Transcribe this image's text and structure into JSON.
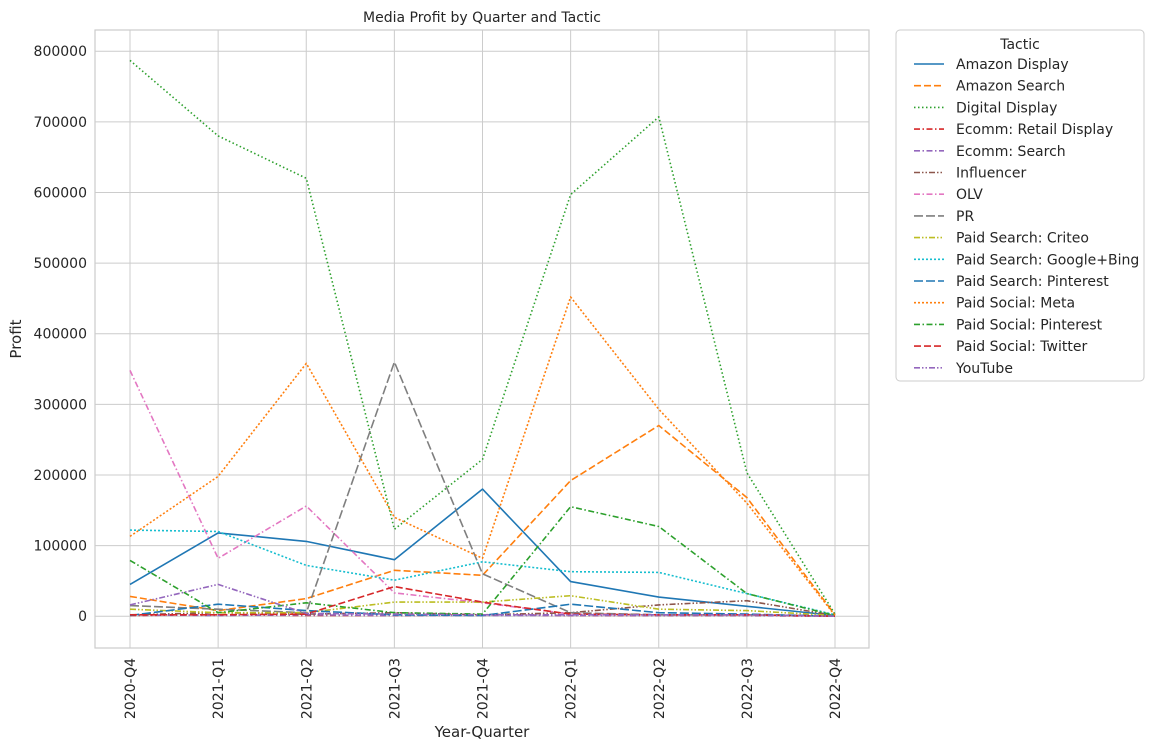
{
  "chart_data": {
    "type": "line",
    "title": "Media Profit by Quarter and Tactic",
    "xlabel": "Year-Quarter",
    "ylabel": "Profit",
    "categories": [
      "2020-Q4",
      "2021-Q1",
      "2021-Q2",
      "2021-Q3",
      "2021-Q4",
      "2022-Q1",
      "2022-Q2",
      "2022-Q3",
      "2022-Q4"
    ],
    "yticks": [
      0,
      100000,
      200000,
      300000,
      400000,
      500000,
      600000,
      700000,
      800000
    ],
    "ytick_labels": [
      "0",
      "100000",
      "200000",
      "300000",
      "400000",
      "500000",
      "600000",
      "700000",
      "800000"
    ],
    "ylim": [
      -45000,
      830000
    ],
    "grid": true,
    "legend": {
      "title": "Tactic",
      "position": "outside-right"
    },
    "series": [
      {
        "name": "Amazon Display",
        "color": "#1f77b4",
        "dash": "solid",
        "values": [
          45000,
          118000,
          106000,
          80000,
          180000,
          49000,
          27000,
          14000,
          1000
        ]
      },
      {
        "name": "Amazon Search",
        "color": "#ff7f0e",
        "dash": "dashed",
        "values": [
          28000,
          8000,
          25000,
          65000,
          58000,
          192000,
          270000,
          168000,
          2000
        ]
      },
      {
        "name": "Digital Display",
        "color": "#2ca02c",
        "dash": "dotted",
        "values": [
          787000,
          680000,
          620000,
          123000,
          222000,
          597000,
          707000,
          203000,
          3000
        ]
      },
      {
        "name": "Ecomm: Retail Display",
        "color": "#d62728",
        "dash": "dashdot",
        "values": [
          1000,
          2000,
          1000,
          1000,
          2000,
          1000,
          1000,
          1000,
          0
        ]
      },
      {
        "name": "Ecomm: Search",
        "color": "#9467bd",
        "dash": "dashdot",
        "values": [
          2000,
          1000,
          2000,
          1000,
          1000,
          1000,
          1000,
          1000,
          0
        ]
      },
      {
        "name": "Influencer",
        "color": "#8c564b",
        "dash": "dashdotdot",
        "values": [
          2000,
          5000,
          3000,
          5000,
          2000,
          5000,
          16000,
          22000,
          1000
        ]
      },
      {
        "name": "OLV",
        "color": "#e377c2",
        "dash": "dashdot",
        "values": [
          348000,
          82000,
          156000,
          33000,
          19000,
          3000,
          2000,
          2000,
          0
        ]
      },
      {
        "name": "PR",
        "color": "#7f7f7f",
        "dash": "longdash",
        "values": [
          15000,
          10000,
          5000,
          360000,
          60000,
          5000,
          2000,
          2000,
          0
        ]
      },
      {
        "name": "Paid Search: Criteo",
        "color": "#bcbd22",
        "dash": "dashdotdot",
        "values": [
          10000,
          5000,
          5000,
          20000,
          20000,
          29000,
          10000,
          8000,
          1000
        ]
      },
      {
        "name": "Paid Search: Google+Bing",
        "color": "#17becf",
        "dash": "densedot",
        "values": [
          122000,
          120000,
          72000,
          51000,
          77000,
          63000,
          62000,
          32000,
          2000
        ]
      },
      {
        "name": "Paid Search: Pinterest",
        "color": "#1f77b4",
        "dash": "longdash",
        "values": [
          1000,
          17000,
          8000,
          2000,
          1000,
          17000,
          5000,
          3000,
          0
        ]
      },
      {
        "name": "Paid Social: Meta",
        "color": "#ff7f0e",
        "dash": "densedot",
        "values": [
          113000,
          198000,
          358000,
          140000,
          82000,
          452000,
          293000,
          160000,
          1000
        ]
      },
      {
        "name": "Paid Social: Pinterest",
        "color": "#2ca02c",
        "dash": "dashdot",
        "values": [
          79000,
          5000,
          19000,
          5000,
          3000,
          155000,
          127000,
          32000,
          1000
        ]
      },
      {
        "name": "Paid Social: Twitter",
        "color": "#d62728",
        "dash": "dashed",
        "values": [
          2000,
          2000,
          3000,
          42000,
          20000,
          3000,
          2000,
          2000,
          0
        ]
      },
      {
        "name": "YouTube",
        "color": "#9467bd",
        "dash": "dashdotdot",
        "values": [
          16000,
          45000,
          4000,
          3000,
          2000,
          2000,
          2000,
          2000,
          0
        ]
      }
    ]
  }
}
